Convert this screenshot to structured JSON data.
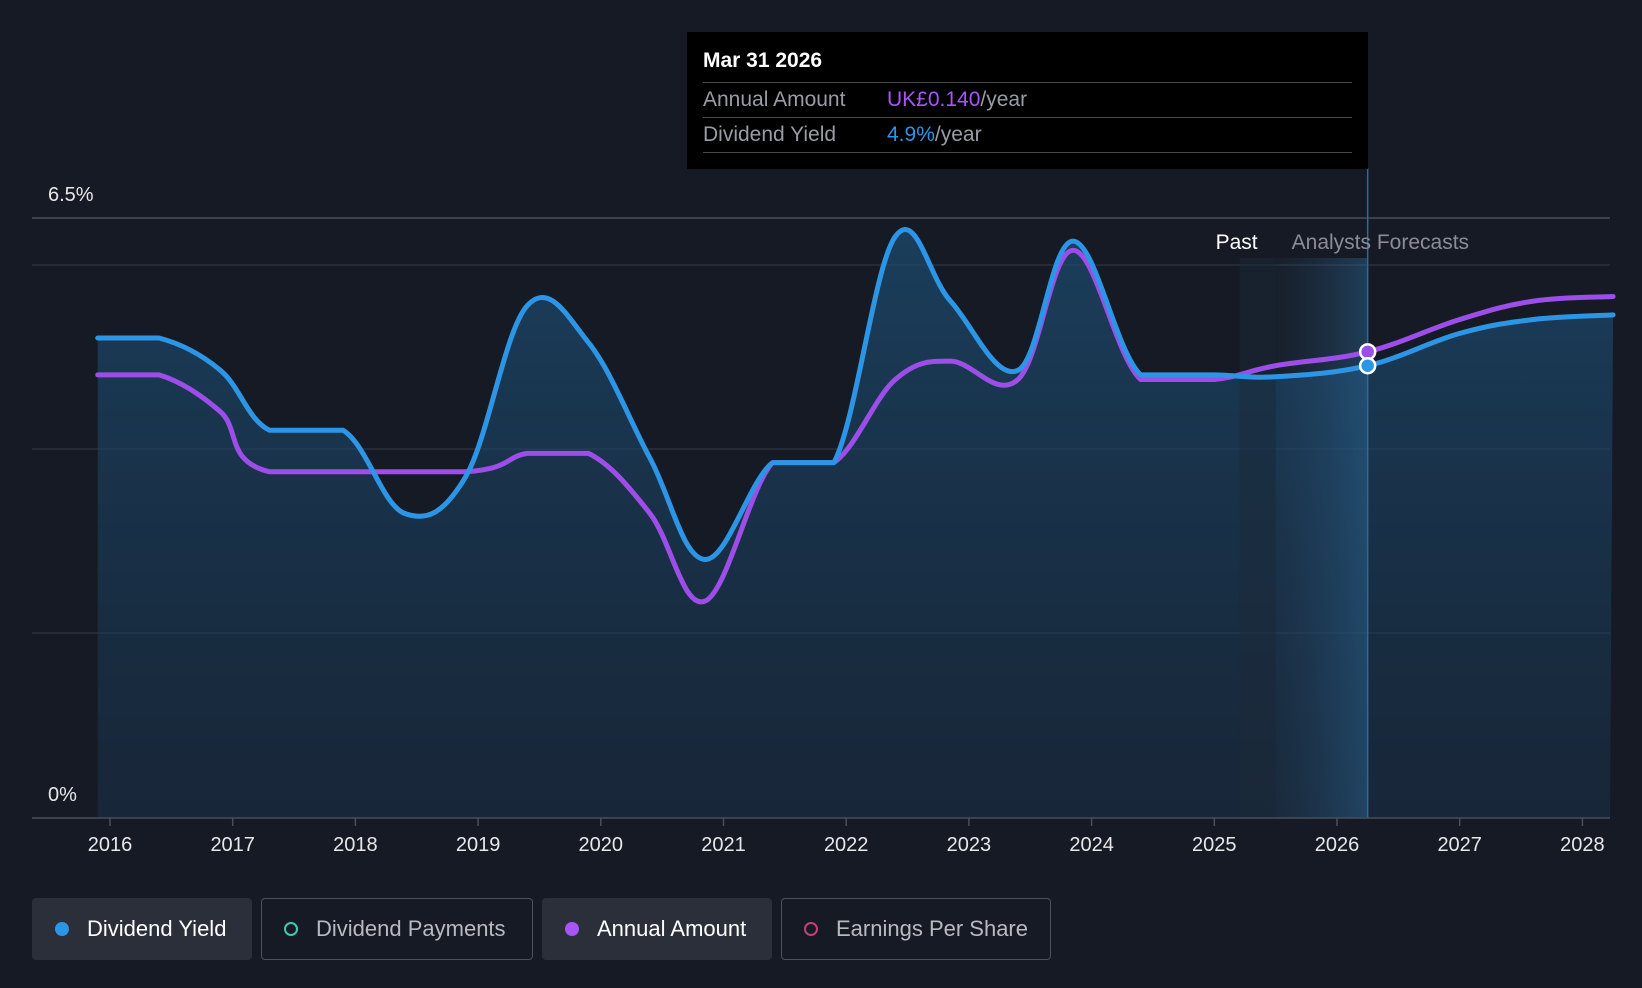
{
  "chart_data": {
    "type": "line",
    "y_axis": {
      "min_label": "0%",
      "max_label": "6.5%",
      "ylim": [
        0,
        6.5
      ]
    },
    "x_axis": {
      "ticks": [
        "2016",
        "2017",
        "2018",
        "2019",
        "2020",
        "2021",
        "2022",
        "2023",
        "2024",
        "2025",
        "2026",
        "2027",
        "2028"
      ],
      "xlim": [
        2015.5,
        2028.25
      ]
    },
    "period_labels": {
      "past": "Past",
      "forecast": "Analysts Forecasts",
      "forecast_start": 2025.5,
      "current_date": 2026.25
    },
    "series": [
      {
        "name": "Dividend Yield",
        "color": "#2d95e6",
        "filled": true,
        "points": [
          [
            2015.9,
            5.2
          ],
          [
            2016.4,
            5.2
          ],
          [
            2016.9,
            4.85
          ],
          [
            2017.3,
            4.2
          ],
          [
            2017.9,
            4.2
          ],
          [
            2018.4,
            3.3
          ],
          [
            2018.9,
            3.7
          ],
          [
            2019.4,
            5.55
          ],
          [
            2019.9,
            5.15
          ],
          [
            2020.4,
            3.9
          ],
          [
            2020.85,
            2.8
          ],
          [
            2021.4,
            3.85
          ],
          [
            2021.9,
            3.85
          ],
          [
            2022.4,
            6.3
          ],
          [
            2022.85,
            5.6
          ],
          [
            2023.4,
            4.85
          ],
          [
            2023.85,
            6.25
          ],
          [
            2024.4,
            4.8
          ],
          [
            2025.0,
            4.8
          ],
          [
            2025.5,
            4.78
          ],
          [
            2026.25,
            4.9
          ],
          [
            2027.0,
            5.25
          ],
          [
            2027.6,
            5.4
          ],
          [
            2028.25,
            5.45
          ]
        ]
      },
      {
        "name": "Annual Amount",
        "color": "#9d4ee8",
        "filled": false,
        "points": [
          [
            2015.9,
            4.8
          ],
          [
            2016.4,
            4.8
          ],
          [
            2016.9,
            4.4
          ],
          [
            2017.3,
            3.75
          ],
          [
            2018.9,
            3.75
          ],
          [
            2019.4,
            3.95
          ],
          [
            2019.9,
            3.95
          ],
          [
            2020.4,
            3.3
          ],
          [
            2020.85,
            2.35
          ],
          [
            2021.4,
            3.85
          ],
          [
            2021.9,
            3.85
          ],
          [
            2022.4,
            4.75
          ],
          [
            2022.85,
            4.95
          ],
          [
            2023.4,
            4.75
          ],
          [
            2023.85,
            6.15
          ],
          [
            2024.4,
            4.75
          ],
          [
            2025.0,
            4.75
          ],
          [
            2025.5,
            4.9
          ],
          [
            2026.25,
            5.05
          ],
          [
            2027.0,
            5.4
          ],
          [
            2027.6,
            5.6
          ],
          [
            2028.25,
            5.65
          ]
        ]
      }
    ]
  },
  "tooltip": {
    "date": "Mar 31 2026",
    "rows": [
      {
        "label": "Annual Amount",
        "value": "UK£0.140",
        "suffix": "/year",
        "color": "#a855f7"
      },
      {
        "label": "Dividend Yield",
        "value": "4.9%",
        "suffix": "/year",
        "color": "#2d95e6"
      }
    ]
  },
  "legend": [
    {
      "label": "Dividend Yield",
      "color": "#2d95e6",
      "active": true
    },
    {
      "label": "Dividend Payments",
      "color": "#3ec9b0",
      "active": false
    },
    {
      "label": "Annual Amount",
      "color": "#a855f7",
      "active": true
    },
    {
      "label": "Earnings Per Share",
      "color": "#c2407a",
      "active": false
    }
  ]
}
